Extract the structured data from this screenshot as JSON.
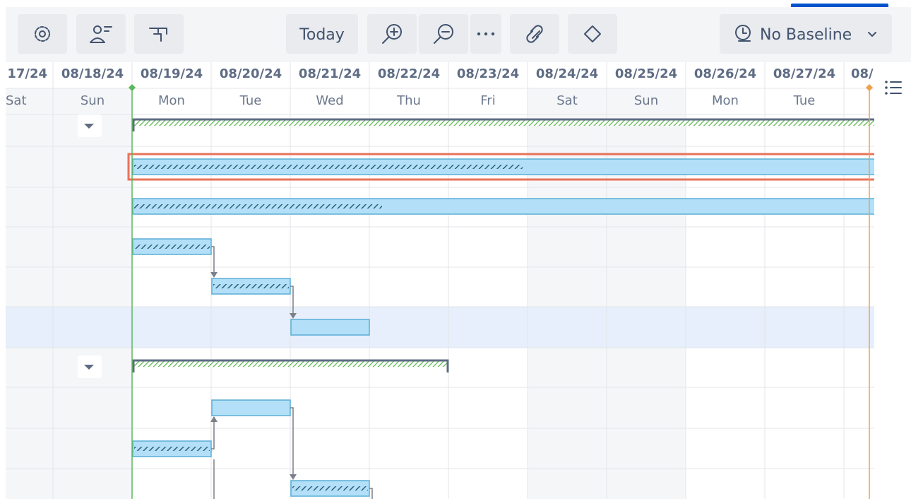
{
  "toolbar": {
    "today": "Today",
    "baseline": "No Baseline"
  },
  "timeline": {
    "dates": [
      "17/24",
      "08/18/24",
      "08/19/24",
      "08/20/24",
      "08/21/24",
      "08/22/24",
      "08/23/24",
      "08/24/24",
      "08/25/24",
      "08/26/24",
      "08/27/24",
      "08/"
    ],
    "weekdays": [
      "Sat",
      "Sun",
      "Mon",
      "Tue",
      "Wed",
      "Thu",
      "Fri",
      "Sat",
      "Sun",
      "Mon",
      "Tue"
    ]
  }
}
